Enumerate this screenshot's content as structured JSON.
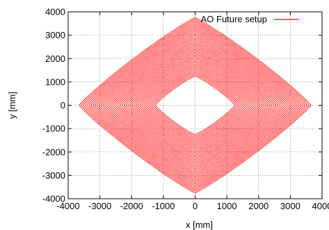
{
  "chart_data": {
    "type": "line",
    "xlabel": "x [mm]",
    "ylabel": "y [mm]",
    "xlim": [
      -4000,
      4000
    ],
    "ylim": [
      -4000,
      4000
    ],
    "xticks": [
      -4000,
      -3000,
      -2000,
      -1000,
      0,
      1000,
      2000,
      3000,
      4000
    ],
    "yticks": [
      -4000,
      -3000,
      -2000,
      -1000,
      0,
      1000,
      2000,
      3000,
      4000
    ],
    "xtick_labels": [
      "-4000",
      "-3000",
      "-2000",
      "-1000",
      "0",
      "1000",
      "2000",
      "3000",
      "4000"
    ],
    "ytick_labels": [
      "-4000",
      "-3000",
      "-2000",
      "-1000",
      "0",
      "1000",
      "2000",
      "3000",
      "4000"
    ],
    "grid": true,
    "legend_position": "top-right",
    "series": [
      {
        "name": "AO Future setup",
        "color": "#ff0000",
        "shape": "nested rounded diamonds (closed curves centered at origin)",
        "outer_half_width_x": 3650,
        "outer_half_height_y": 3750,
        "inner_half_width_x": 1250,
        "inner_half_height_y": 1250,
        "loop_count": 40
      }
    ]
  }
}
